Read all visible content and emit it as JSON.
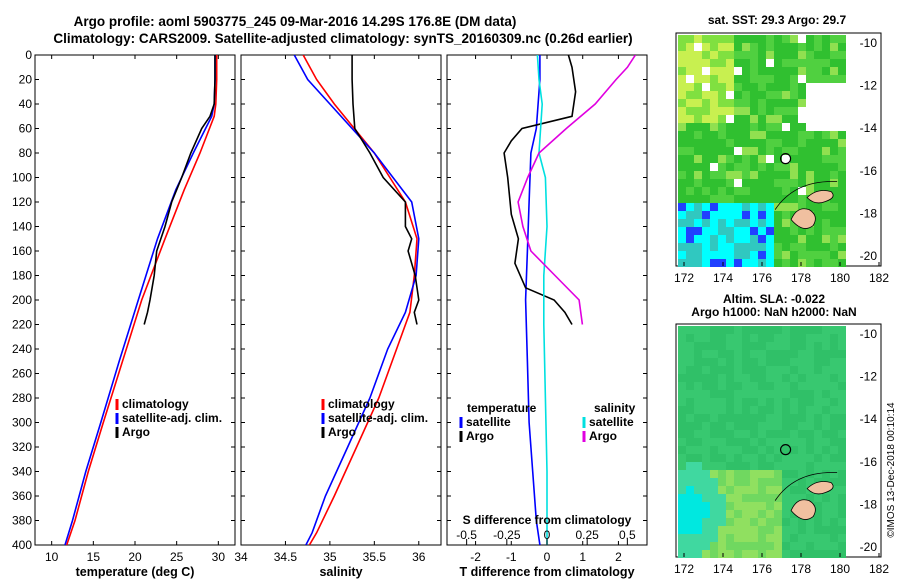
{
  "title": {
    "line1": "Argo profile: aoml 5903775_245 09-Mar-2016 14.29S 176.8E (DM data)",
    "line2": "Climatology: CARS2009. Satellite-adjusted climatology: synTS_20160309.nc (0.26d earlier)"
  },
  "colors": {
    "climatology": "#ff0000",
    "satellite": "#0000ff",
    "argo": "#000000",
    "salinity_satellite": "#00e0e0",
    "salinity_argo": "#e000e0"
  },
  "credit": "©IMOS 13-Dec-2018 00:10:14",
  "chart_data": [
    {
      "id": "temperature",
      "type": "line",
      "xlabel": "temperature (deg C)",
      "ylabel": "",
      "xlim": [
        8,
        32
      ],
      "ylim": [
        400,
        0
      ],
      "xticks": [
        10,
        15,
        20,
        25,
        30
      ],
      "yticks": [
        0,
        20,
        40,
        60,
        80,
        100,
        120,
        140,
        160,
        180,
        200,
        220,
        240,
        260,
        280,
        300,
        320,
        340,
        360,
        380,
        400
      ],
      "legend": [
        "climatology",
        "satellite-adj. clim.",
        "Argo"
      ],
      "series": [
        {
          "name": "climatology",
          "color": "#ff0000",
          "x": [
            29.8,
            29.8,
            29.7,
            29.5,
            27.8,
            25.9,
            23.6,
            20.8,
            18.5,
            16.2,
            14.4,
            12.8,
            11.8
          ],
          "y": [
            0,
            20,
            40,
            50,
            80,
            110,
            150,
            200,
            250,
            300,
            340,
            380,
            400
          ]
        },
        {
          "name": "satellite-adj. clim.",
          "color": "#0000ff",
          "x": [
            29.6,
            29.6,
            29.5,
            29.2,
            27.0,
            24.9,
            22.7,
            20.4,
            18.1,
            15.9,
            14.1,
            12.5,
            11.6
          ],
          "y": [
            0,
            20,
            40,
            50,
            80,
            110,
            150,
            200,
            250,
            300,
            340,
            380,
            400
          ]
        },
        {
          "name": "Argo",
          "color": "#000000",
          "x": [
            29.6,
            29.6,
            29.5,
            29.0,
            28.0,
            26.7,
            25.6,
            24.4,
            23.6,
            22.6,
            22.3,
            21.8,
            21.5,
            21.1
          ],
          "y": [
            0,
            20,
            40,
            50,
            60,
            80,
            100,
            120,
            140,
            160,
            180,
            200,
            210,
            220
          ]
        }
      ]
    },
    {
      "id": "salinity",
      "type": "line",
      "xlabel": "salinity",
      "ylabel": "",
      "xlim": [
        34.0,
        36.25
      ],
      "ylim": [
        400,
        0
      ],
      "xticks": [
        34,
        34.5,
        35,
        35.5,
        36
      ],
      "xticklabels": [
        "34",
        "34.5",
        "35",
        "35.5",
        "36"
      ],
      "legend": [
        "climatology",
        "satellite-adj. clim.",
        "Argo"
      ],
      "series": [
        {
          "name": "climatology",
          "color": "#ff0000",
          "x": [
            34.7,
            34.85,
            35.05,
            35.5,
            35.85,
            35.98,
            35.95,
            35.9,
            35.75,
            35.55,
            35.3,
            35.05,
            34.85,
            34.77
          ],
          "y": [
            0,
            20,
            40,
            80,
            120,
            150,
            180,
            210,
            240,
            280,
            320,
            360,
            390,
            400
          ]
        },
        {
          "name": "satellite-adj. clim.",
          "color": "#0000ff",
          "x": [
            34.6,
            34.75,
            35.0,
            35.5,
            35.92,
            36.0,
            35.97,
            35.85,
            35.65,
            35.45,
            35.2,
            34.95,
            34.8,
            34.73
          ],
          "y": [
            0,
            20,
            40,
            80,
            120,
            150,
            180,
            210,
            240,
            280,
            320,
            360,
            390,
            400
          ]
        },
        {
          "name": "Argo",
          "color": "#000000",
          "x": [
            35.25,
            35.25,
            35.26,
            35.28,
            35.45,
            35.6,
            35.85,
            35.85,
            35.92,
            35.88,
            35.96,
            36.0,
            35.95,
            35.98
          ],
          "y": [
            0,
            20,
            40,
            60,
            80,
            100,
            120,
            140,
            150,
            160,
            180,
            200,
            210,
            220
          ]
        }
      ]
    },
    {
      "id": "differences",
      "type": "line",
      "xlabel": "T difference from climatology",
      "xlabel2": "S difference from climatology",
      "ylabel": "",
      "xlim": [
        -2.8,
        2.8
      ],
      "ylim": [
        400,
        0
      ],
      "xticks": [
        -2,
        -1,
        0,
        1,
        2
      ],
      "xticks2": [
        -0.5,
        -0.25,
        0,
        0.25,
        0.5
      ],
      "xticklabels2": [
        "-0.5",
        "-0.25",
        "0",
        "0.25",
        "0.5"
      ],
      "legend_t_title": "temperature",
      "legend_s_title": "salinity",
      "legend": [
        "satellite",
        "Argo",
        "satellite",
        "Argo"
      ],
      "series": [
        {
          "name": "T satellite",
          "color": "#0000ff",
          "x": [
            -0.2,
            -0.2,
            -0.25,
            -0.3,
            -0.45,
            -0.5,
            -0.55,
            -0.6,
            -0.55,
            -0.5,
            -0.4,
            -0.3,
            -0.2
          ],
          "y": [
            0,
            20,
            40,
            60,
            80,
            120,
            160,
            200,
            250,
            300,
            340,
            380,
            400
          ]
        },
        {
          "name": "T Argo",
          "color": "#000000",
          "x": [
            0.6,
            0.7,
            0.8,
            0.7,
            -0.7,
            -1.0,
            -1.2,
            -1.1,
            -1.0,
            -0.8,
            -0.9,
            -0.6,
            0.2,
            0.5,
            0.7
          ],
          "y": [
            0,
            10,
            30,
            50,
            60,
            70,
            80,
            100,
            130,
            150,
            170,
            190,
            200,
            210,
            220
          ]
        },
        {
          "name": "S satellite",
          "color": "#00e0e0",
          "x": [
            -0.06,
            -0.05,
            -0.03,
            -0.04,
            -0.05,
            -0.01,
            0.0,
            -0.02,
            -0.02,
            -0.01,
            0.0,
            0.0
          ],
          "y": [
            0,
            20,
            40,
            60,
            80,
            100,
            140,
            180,
            220,
            280,
            340,
            400
          ]
        },
        {
          "name": "S Argo",
          "color": "#e000e0",
          "x": [
            0.55,
            0.5,
            0.43,
            0.3,
            0.12,
            -0.05,
            -0.12,
            -0.18,
            -0.15,
            -0.1,
            0.05,
            0.2,
            0.22
          ],
          "y": [
            0,
            10,
            20,
            40,
            60,
            80,
            100,
            120,
            140,
            160,
            180,
            200,
            220
          ]
        }
      ]
    }
  ],
  "maps": [
    {
      "id": "sst-map",
      "title": "sat. SST: 29.3 Argo: 29.7",
      "xticks": [
        "172",
        "174",
        "176",
        "178",
        "180",
        "182"
      ],
      "yticks": [
        "-10",
        "-12",
        "-14",
        "-16",
        "-18",
        "-20"
      ]
    },
    {
      "id": "sla-map",
      "title1": "Altim. SLA: -0.022",
      "title2": "Argo h1000: NaN h2000: NaN",
      "xticks": [
        "172",
        "174",
        "176",
        "178",
        "180",
        "182"
      ],
      "yticks": [
        "-10",
        "-12",
        "-14",
        "-16",
        "-18",
        "-20"
      ]
    }
  ]
}
